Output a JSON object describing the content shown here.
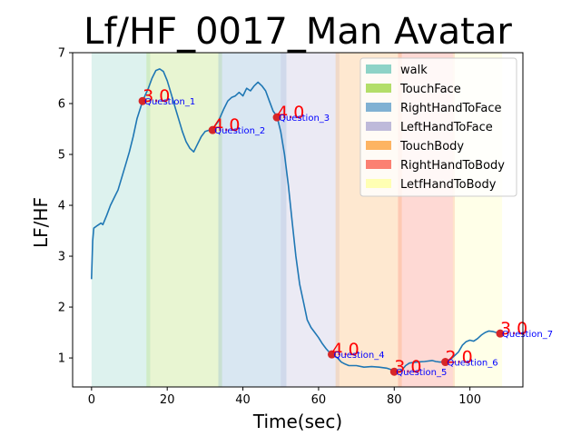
{
  "chart_data": {
    "type": "line",
    "title": "Lf/HF_0017_Man Avatar",
    "xlabel": "Time(sec)",
    "ylabel": "LF/HF",
    "xlim": [
      -5,
      114
    ],
    "ylim": [
      0.43,
      7
    ],
    "x_ticks": [
      "0",
      "20",
      "40",
      "60",
      "80",
      "100"
    ],
    "y_ticks": [
      "1",
      "2",
      "3",
      "4",
      "5",
      "6",
      "7"
    ],
    "grid": false,
    "legend_position": "top-right",
    "legend": [
      {
        "label": "walk",
        "color": "#8dd3c7"
      },
      {
        "label": "TouchFace",
        "color": "#b3de69"
      },
      {
        "label": "RightHandToFace",
        "color": "#80b1d3"
      },
      {
        "label": "LeftHandToFace",
        "color": "#bebada"
      },
      {
        "label": "TouchBody",
        "color": "#fdb462"
      },
      {
        "label": "RightHandToBody",
        "color": "#fb8072"
      },
      {
        "label": "LetfHandToBody",
        "color": "#ffffb3"
      }
    ],
    "regions": [
      {
        "label": "walk",
        "start": 0,
        "end": 15.5
      },
      {
        "label": "TouchFace",
        "start": 14.5,
        "end": 34.5
      },
      {
        "label": "RightHandToFace",
        "start": 33.5,
        "end": 51.5
      },
      {
        "label": "LeftHandToFace",
        "start": 50,
        "end": 65.5
      },
      {
        "label": "TouchBody",
        "start": 64.5,
        "end": 82
      },
      {
        "label": "RightHandToBody",
        "start": 81,
        "end": 96
      },
      {
        "label": "LetfHandToBody",
        "start": 95.5,
        "end": 108.5
      }
    ],
    "series": [
      {
        "color": "#1f77b4",
        "points": [
          [
            0,
            2.55
          ],
          [
            0.3,
            3.3
          ],
          [
            0.6,
            3.55
          ],
          [
            1.5,
            3.6
          ],
          [
            2.5,
            3.65
          ],
          [
            3,
            3.62
          ],
          [
            4,
            3.8
          ],
          [
            5,
            4.0
          ],
          [
            6,
            4.15
          ],
          [
            7,
            4.3
          ],
          [
            8,
            4.55
          ],
          [
            9,
            4.8
          ],
          [
            10,
            5.05
          ],
          [
            11,
            5.35
          ],
          [
            12,
            5.7
          ],
          [
            13.5,
            6.05
          ],
          [
            15,
            6.3
          ],
          [
            16,
            6.5
          ],
          [
            17,
            6.65
          ],
          [
            18,
            6.68
          ],
          [
            19,
            6.63
          ],
          [
            20,
            6.45
          ],
          [
            21,
            6.2
          ],
          [
            22,
            5.95
          ],
          [
            23,
            5.7
          ],
          [
            24,
            5.45
          ],
          [
            25,
            5.25
          ],
          [
            26,
            5.12
          ],
          [
            27,
            5.05
          ],
          [
            28,
            5.2
          ],
          [
            29,
            5.35
          ],
          [
            30,
            5.45
          ],
          [
            32,
            5.5
          ],
          [
            33.5,
            5.65
          ],
          [
            35,
            5.9
          ],
          [
            36,
            6.05
          ],
          [
            37,
            6.12
          ],
          [
            38,
            6.15
          ],
          [
            39,
            6.22
          ],
          [
            40,
            6.15
          ],
          [
            41,
            6.3
          ],
          [
            42,
            6.25
          ],
          [
            43,
            6.35
          ],
          [
            44,
            6.42
          ],
          [
            45,
            6.35
          ],
          [
            46,
            6.25
          ],
          [
            47,
            6.05
          ],
          [
            48,
            5.85
          ],
          [
            49,
            5.75
          ],
          [
            50,
            5.45
          ],
          [
            51,
            5.0
          ],
          [
            52,
            4.4
          ],
          [
            53,
            3.7
          ],
          [
            54,
            3.0
          ],
          [
            55,
            2.45
          ],
          [
            56,
            2.1
          ],
          [
            57,
            1.75
          ],
          [
            58,
            1.6
          ],
          [
            59,
            1.5
          ],
          [
            60,
            1.4
          ],
          [
            61,
            1.28
          ],
          [
            62,
            1.18
          ],
          [
            63,
            1.1
          ],
          [
            64,
            1.05
          ],
          [
            65,
            1.0
          ],
          [
            66,
            0.92
          ],
          [
            67,
            0.88
          ],
          [
            68,
            0.85
          ],
          [
            70,
            0.85
          ],
          [
            72,
            0.82
          ],
          [
            74,
            0.83
          ],
          [
            76,
            0.82
          ],
          [
            78,
            0.8
          ],
          [
            80,
            0.75
          ],
          [
            81,
            0.72
          ],
          [
            82,
            0.76
          ],
          [
            83,
            0.85
          ],
          [
            84,
            0.9
          ],
          [
            86,
            0.92
          ],
          [
            88,
            0.93
          ],
          [
            90,
            0.95
          ],
          [
            91,
            0.93
          ],
          [
            92,
            0.92
          ],
          [
            93,
            0.92
          ],
          [
            94,
            0.93
          ],
          [
            95,
            0.98
          ],
          [
            96,
            1.05
          ],
          [
            97,
            1.12
          ],
          [
            98,
            1.25
          ],
          [
            99,
            1.32
          ],
          [
            100,
            1.35
          ],
          [
            101,
            1.33
          ],
          [
            102,
            1.38
          ],
          [
            103,
            1.45
          ],
          [
            104,
            1.5
          ],
          [
            105,
            1.53
          ],
          [
            106,
            1.52
          ],
          [
            107,
            1.5
          ],
          [
            108,
            1.48
          ]
        ]
      }
    ],
    "markers": [
      {
        "x": 13.5,
        "y": 6.05,
        "question": "Question_1",
        "score": "3.0"
      },
      {
        "x": 32,
        "y": 5.48,
        "question": "Question_2",
        "score": "4.0"
      },
      {
        "x": 49,
        "y": 5.73,
        "question": "Question_3",
        "score": "4.0"
      },
      {
        "x": 63.5,
        "y": 1.07,
        "question": "Question_4",
        "score": "4.0"
      },
      {
        "x": 80,
        "y": 0.73,
        "question": "Question_5",
        "score": "3.0"
      },
      {
        "x": 93.5,
        "y": 0.92,
        "question": "Question_6",
        "score": "2.0"
      },
      {
        "x": 108,
        "y": 1.48,
        "question": "Question_7",
        "score": "3.0"
      }
    ],
    "marker_color": "#d62728",
    "score_color": "#ff0000",
    "question_color": "#0000ff"
  }
}
